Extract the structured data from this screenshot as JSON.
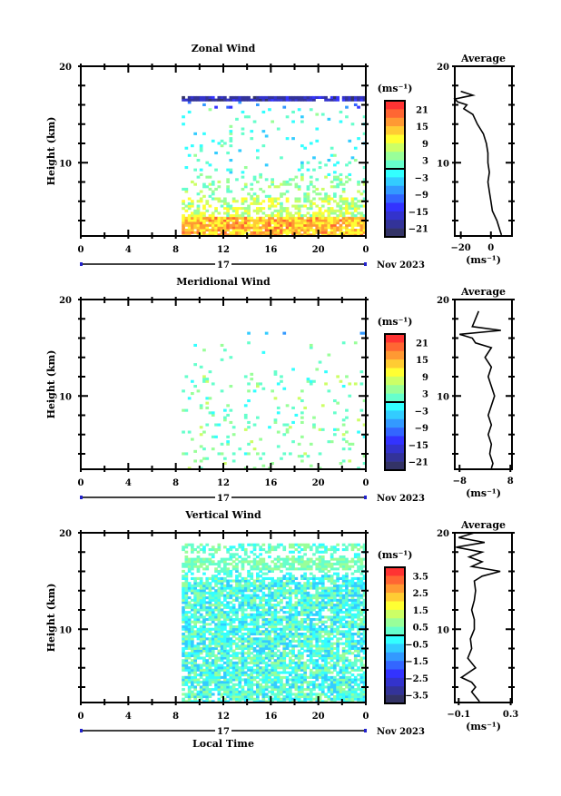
{
  "x_day_label": "17",
  "month_label": "Nov 2023",
  "xlabel_bottom": "Local Time",
  "ylabel": "Height (km)",
  "unit_label": "(ms⁻¹)",
  "average_title": "Average",
  "colors": [
    "#ff3333",
    "#ff6633",
    "#ff9933",
    "#ffcc33",
    "#ffff33",
    "#ccff66",
    "#99ff99",
    "#66ffcc",
    "#33ffff",
    "#33ccff",
    "#3399ff",
    "#3366ff",
    "#3333ff",
    "#3333cc",
    "#333399",
    "#333366"
  ],
  "chart_data": [
    {
      "type": "heatmap",
      "title": "Zonal Wind",
      "xlabel": "",
      "ylabel": "Height (km)",
      "xlim": [
        0,
        24
      ],
      "ylim": [
        2.4,
        20
      ],
      "xticks": [
        "0",
        "4",
        "8",
        "12",
        "16",
        "20",
        "0"
      ],
      "yticks": [
        "20",
        "10"
      ],
      "data_start_hour": 8.5,
      "colorbar": {
        "unit": "(ms⁻¹)",
        "min": -24,
        "max": 24,
        "ticks": [
          "21",
          "15",
          "9",
          "3",
          "−3",
          "−9",
          "−15",
          "−21"
        ]
      },
      "bands": [
        {
          "z": [
            2.4,
            4.2
          ],
          "mean": 14,
          "spread": 5,
          "fill": 0.92
        },
        {
          "z": [
            4.2,
            6.2
          ],
          "mean": 7,
          "spread": 5,
          "fill": 0.55
        },
        {
          "z": [
            6.2,
            8.5
          ],
          "mean": 4,
          "spread": 4,
          "fill": 0.2
        },
        {
          "z": [
            8.5,
            15.5
          ],
          "mean": 0,
          "spread": 4,
          "fill": 0.06
        },
        {
          "z": [
            15.5,
            16.3
          ],
          "mean": -10,
          "spread": 4,
          "fill": 0.04
        },
        {
          "z": [
            16.3,
            16.9
          ],
          "mean": -18,
          "spread": 4,
          "fill": 0.9
        }
      ],
      "average": {
        "xlim": [
          -24,
          14
        ],
        "xticks": [
          "−20",
          "0"
        ],
        "xtick_values": [
          -20,
          0
        ],
        "yticks": [
          "20",
          "10"
        ],
        "height": [
          2.5,
          3,
          4,
          5,
          6,
          7,
          8,
          9,
          10,
          11,
          12,
          13,
          14,
          15,
          15.6,
          16.0,
          16.3,
          16.6,
          17.0,
          17.4
        ],
        "value": [
          7,
          6,
          4,
          1,
          0,
          -1,
          -2,
          -1,
          -2,
          -2,
          -3,
          -5,
          -9,
          -12,
          -18,
          -16,
          -22,
          -24,
          -12,
          -20
        ]
      }
    },
    {
      "type": "heatmap",
      "title": "Meridional Wind",
      "xlabel": "",
      "ylabel": "Height (km)",
      "xlim": [
        0,
        24
      ],
      "ylim": [
        2.4,
        20
      ],
      "xticks": [
        "0",
        "4",
        "8",
        "12",
        "16",
        "20",
        "0"
      ],
      "yticks": [
        "20",
        "10"
      ],
      "data_start_hour": 8.5,
      "colorbar": {
        "unit": "(ms⁻¹)",
        "min": -24,
        "max": 24,
        "ticks": [
          "21",
          "15",
          "9",
          "3",
          "−3",
          "−9",
          "−15",
          "−21"
        ]
      },
      "bands": [
        {
          "z": [
            2.4,
            12.5
          ],
          "mean": 3,
          "spread": 4,
          "fill": 0.08
        },
        {
          "z": [
            12.5,
            15.5
          ],
          "mean": 2,
          "spread": 4,
          "fill": 0.02
        },
        {
          "z": [
            16.2,
            16.6
          ],
          "mean": -6,
          "spread": 3,
          "fill": 0.05
        }
      ],
      "average": {
        "xlim": [
          -9.5,
          8.5
        ],
        "xticks": [
          "−8",
          "8"
        ],
        "xtick_values": [
          -8,
          8
        ],
        "yticks": [
          "20",
          "10"
        ],
        "height": [
          2.5,
          3,
          4,
          5,
          6,
          7,
          8,
          9,
          10,
          11,
          12,
          13,
          14,
          15,
          15.5,
          16.0,
          16.4,
          16.8,
          17.2,
          18.8
        ],
        "value": [
          2,
          2.5,
          1.5,
          2,
          1,
          2,
          1,
          2,
          3,
          2,
          1,
          2,
          0,
          2,
          -3,
          -4,
          -8,
          5,
          -4,
          -2
        ]
      }
    },
    {
      "type": "heatmap",
      "title": "Vertical Wind",
      "xlabel": "Local Time",
      "ylabel": "Height (km)",
      "xlim": [
        0,
        24
      ],
      "ylim": [
        2.4,
        20
      ],
      "xticks": [
        "0",
        "4",
        "8",
        "12",
        "16",
        "20",
        "0"
      ],
      "yticks": [
        "20",
        "10"
      ],
      "data_start_hour": 8.5,
      "colorbar": {
        "unit": "(ms⁻¹)",
        "min": -4,
        "max": 4,
        "ticks": [
          "3.5",
          "2.5",
          "1.5",
          "0.5",
          "−0.5",
          "−1.5",
          "−2.5",
          "−3.5"
        ]
      },
      "bands": [
        {
          "z": [
            2.4,
            15.3
          ],
          "mean": 0,
          "spread": 0.9,
          "fill": 0.8
        },
        {
          "z": [
            15.3,
            16.0
          ],
          "mean": 0,
          "spread": 0.6,
          "fill": 0.3
        },
        {
          "z": [
            16.0,
            17.2
          ],
          "mean": 0.5,
          "spread": 0.5,
          "fill": 0.75
        },
        {
          "z": [
            17.2,
            18.0
          ],
          "mean": 0.2,
          "spread": 0.6,
          "fill": 0.3
        },
        {
          "z": [
            18.0,
            18.7
          ],
          "mean": 0.3,
          "spread": 0.6,
          "fill": 0.55
        }
      ],
      "average": {
        "xlim": [
          -0.13,
          0.31
        ],
        "xticks": [
          "−0.1",
          "0.3"
        ],
        "xtick_values": [
          -0.1,
          0.3
        ],
        "yticks": [
          "20",
          "10"
        ],
        "height": [
          2.5,
          3,
          3.5,
          4,
          4.5,
          5,
          6,
          7,
          8,
          9,
          10,
          11,
          12,
          13,
          14,
          15,
          15.5,
          16,
          16.5,
          17,
          17.5,
          18,
          18.5,
          19,
          19.5,
          20
        ],
        "value": [
          0.06,
          0.03,
          0.0,
          0.03,
          0.0,
          -0.08,
          0.03,
          -0.03,
          0.0,
          -0.01,
          0.02,
          0.02,
          0.0,
          0.02,
          0.03,
          0.02,
          0.08,
          0.22,
          0.0,
          0.08,
          -0.02,
          0.08,
          -0.12,
          0.1,
          -0.1,
          0.02
        ]
      }
    }
  ]
}
